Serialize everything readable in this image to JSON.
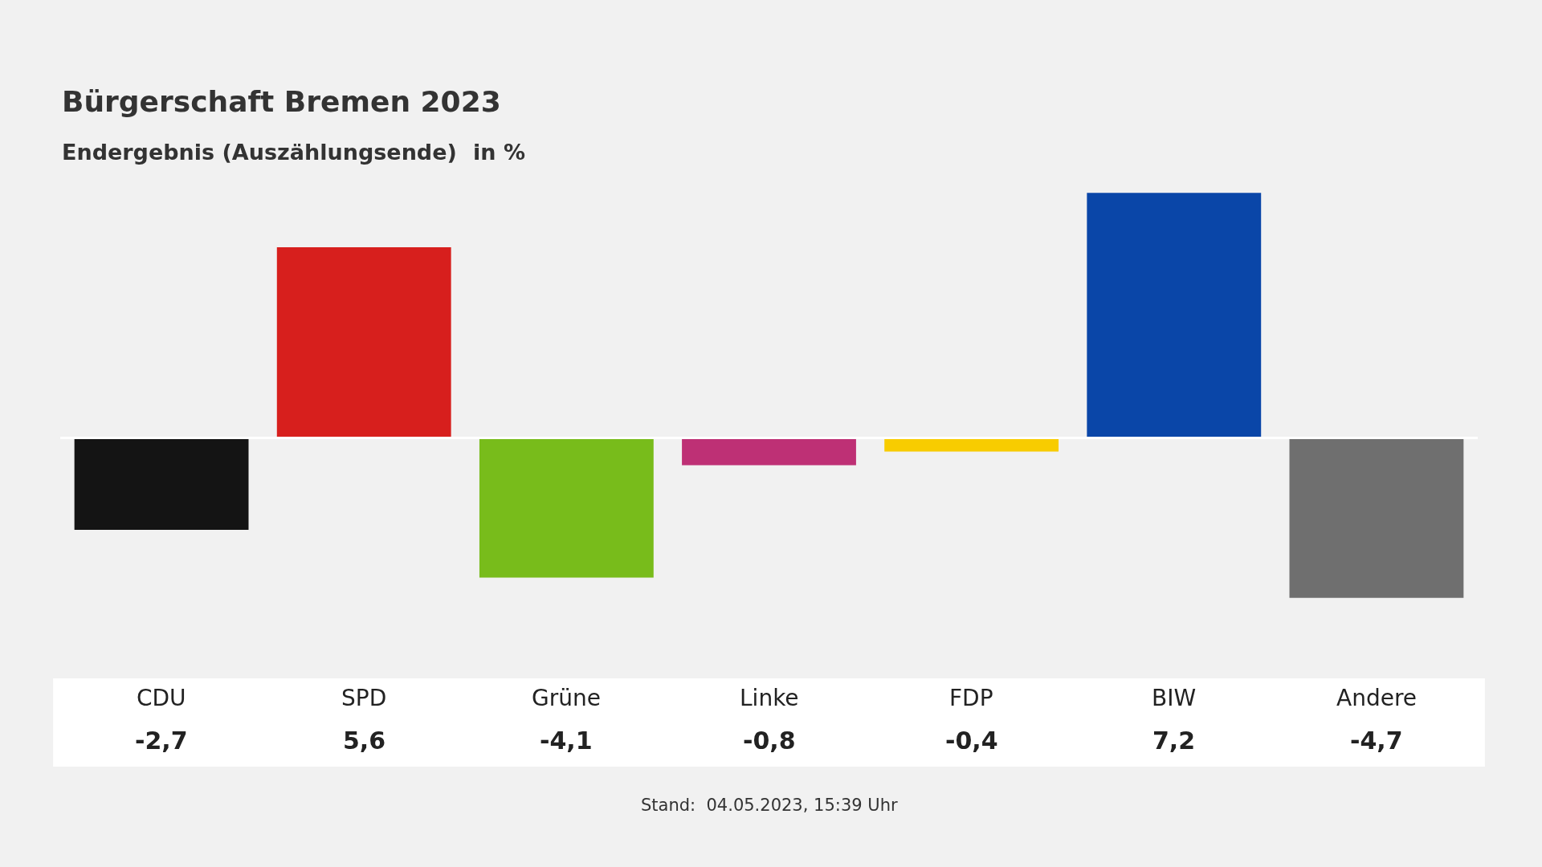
{
  "chart_data": {
    "type": "bar",
    "title": "Bürgerschaft Bremen 2023",
    "subtitle": "Endergebnis (Auszählungsende)",
    "ylabel": "in %",
    "categories": [
      "CDU",
      "SPD",
      "Grüne",
      "Linke",
      "FDP",
      "BIW",
      "Andere"
    ],
    "values": [
      -2.7,
      5.6,
      -4.1,
      -0.8,
      -0.4,
      7.2,
      -4.7
    ],
    "value_labels": [
      "-2,7",
      "5,6",
      "-4,1",
      "-0,8",
      "-0,4",
      "7,2",
      "-4,7"
    ],
    "colors": [
      "#141414",
      "#d71f1d",
      "#78bc1b",
      "#be3075",
      "#f8cc00",
      "#0a46a8",
      "#6f6f6f"
    ],
    "annotations": [
      "Stand:  04.05.2023, 15:39 Uhr"
    ],
    "legend": false
  }
}
